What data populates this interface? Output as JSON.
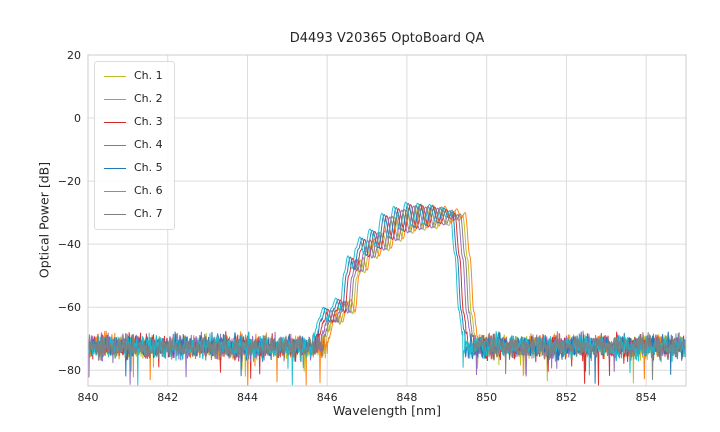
{
  "figure": {
    "background": "#ffffff"
  },
  "chart_data": {
    "type": "line",
    "title": "D4493 V20365 OptoBoard QA",
    "xlabel": "Wavelength [nm]",
    "ylabel": "Optical Power [dB]",
    "xlim": [
      840,
      855
    ],
    "ylim": [
      -85,
      20
    ],
    "xticks": [
      840,
      842,
      844,
      846,
      848,
      850,
      852,
      854
    ],
    "yticks": [
      20,
      0,
      -20,
      -40,
      -60,
      -80
    ],
    "grid": true,
    "grid_color": "#dcdcdc",
    "axis_color": "#cccccc",
    "text_color": "#262626",
    "legend_position": "upper-left",
    "noise_floor_db": -72.5,
    "noise_std_db": 1.8,
    "spike_probability": 0.02,
    "spike_extra_db": 12,
    "sample_step_nm": 0.012,
    "spectrum_shape": [
      [
        845.85,
        -72
      ],
      [
        846.0,
        -65
      ],
      [
        846.1,
        -61
      ],
      [
        846.2,
        -65.5
      ],
      [
        846.3,
        -61.5
      ],
      [
        846.42,
        -58
      ],
      [
        846.52,
        -62
      ],
      [
        846.62,
        -50
      ],
      [
        846.72,
        -44.5
      ],
      [
        846.82,
        -48.5
      ],
      [
        846.92,
        -42
      ],
      [
        847.02,
        -38.5
      ],
      [
        847.12,
        -44
      ],
      [
        847.27,
        -36
      ],
      [
        847.42,
        -41.5
      ],
      [
        847.57,
        -31
      ],
      [
        847.72,
        -38.5
      ],
      [
        847.87,
        -28.8
      ],
      [
        848.02,
        -36
      ],
      [
        848.17,
        -27.5
      ],
      [
        848.32,
        -35
      ],
      [
        848.47,
        -27.8
      ],
      [
        848.62,
        -34.5
      ],
      [
        848.77,
        -28.2
      ],
      [
        848.92,
        -33.5
      ],
      [
        849.07,
        -29
      ],
      [
        849.18,
        -32
      ],
      [
        849.28,
        -30.2
      ],
      [
        849.4,
        -44
      ],
      [
        849.5,
        -62
      ],
      [
        849.6,
        -72
      ]
    ],
    "series": [
      {
        "name": "Ch. 1",
        "color": "#bcbd22",
        "offset_nm": 0.12,
        "gain_db": -0.6,
        "seed": 101
      },
      {
        "name": "Ch. 2",
        "color": "#ff7f0e",
        "offset_nm": 0.18,
        "gain_db": 0.2,
        "seed": 202
      },
      {
        "name": "Ch. 3",
        "color": "#d62728",
        "offset_nm": -0.08,
        "gain_db": 0.0,
        "seed": 303
      },
      {
        "name": "Ch. 4",
        "color": "#9467bd",
        "offset_nm": 0.0,
        "gain_db": -0.4,
        "seed": 404
      },
      {
        "name": "Ch. 5",
        "color": "#1f77b4",
        "offset_nm": -0.14,
        "gain_db": 0.4,
        "seed": 505
      },
      {
        "name": "Ch. 6",
        "color": "#17becf",
        "offset_nm": -0.2,
        "gain_db": 0.8,
        "seed": 606
      },
      {
        "name": "Ch. 7",
        "color": "#7f7f7f",
        "offset_nm": 0.06,
        "gain_db": -0.2,
        "seed": 707
      }
    ]
  }
}
